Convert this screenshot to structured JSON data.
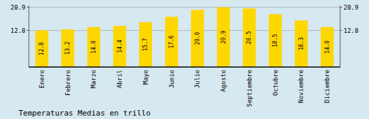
{
  "chart_data": {
    "type": "bar",
    "title": "Temperaturas Medias en trillo",
    "categories": [
      "Enero",
      "Febrero",
      "Marzo",
      "Abril",
      "Mayo",
      "Junio",
      "Julio",
      "Agosto",
      "Septiembre",
      "Octubre",
      "Noviembre",
      "Diciembre"
    ],
    "values": [
      12.8,
      13.2,
      14.0,
      14.4,
      15.7,
      17.6,
      20.0,
      20.9,
      20.5,
      18.5,
      16.3,
      14.0
    ],
    "value_labels": [
      "12.8",
      "13.2",
      "14.0",
      "14.4",
      "15.7",
      "17.6",
      "20.0",
      "20.9",
      "20.5",
      "18.5",
      "16.3",
      "14.0"
    ],
    "color": "#FFD700",
    "ylim": [
      0,
      21.548
    ],
    "yticks": [
      12.8,
      20.9
    ],
    "y2lim": [
      0,
      21.548
    ],
    "y2ticks": [
      12.8,
      20.9
    ],
    "grid": true,
    "data_labels": true
  }
}
